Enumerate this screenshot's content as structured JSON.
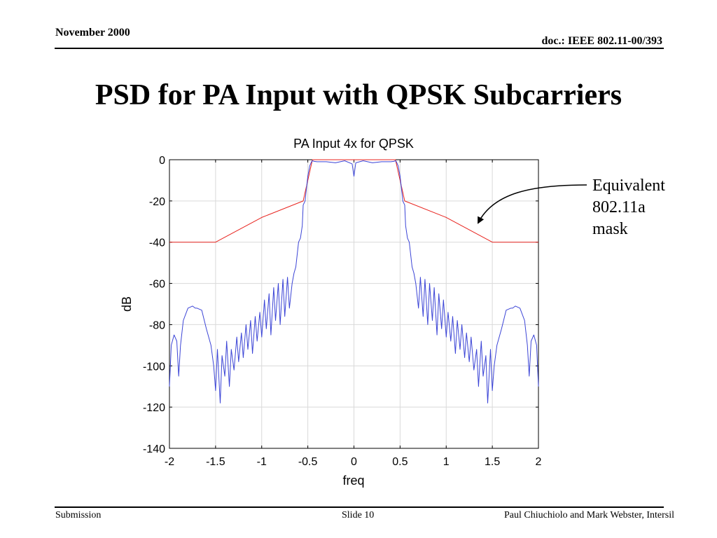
{
  "header": {
    "date": "November 2000",
    "doc": "doc.: IEEE 802.11-00/393"
  },
  "slide": {
    "title": "PSD for PA Input with QPSK Subcarriers"
  },
  "annotation": {
    "lines": [
      "Equivalent",
      "802.11a",
      "mask"
    ]
  },
  "footer": {
    "left": "Submission",
    "center": "Slide 10",
    "right": "Paul Chiuchiolo and Mark Webster, Intersil"
  },
  "colors": {
    "psd": "#3b44d6",
    "mask": "#e8231e",
    "grid": "#d9d9d9"
  },
  "chart_data": {
    "type": "line",
    "title": "PA Input 4x for QPSK",
    "xlabel": "freq",
    "ylabel": "dB",
    "xlim": [
      -2,
      2
    ],
    "ylim": [
      -140,
      0
    ],
    "x_ticks": [
      -2,
      -1.5,
      -1,
      -0.5,
      0,
      0.5,
      1,
      1.5,
      2
    ],
    "x_tick_labels": [
      "-2",
      "-1.5",
      "-1",
      "-0.5",
      "0",
      "0.5",
      "1",
      "1.5",
      "2"
    ],
    "y_ticks": [
      0,
      -20,
      -40,
      -60,
      -80,
      -100,
      -120,
      -140
    ],
    "y_tick_labels": [
      "0",
      "-20",
      "-40",
      "-60",
      "-80",
      "-100",
      "-120",
      "-140"
    ],
    "grid": true,
    "series": [
      {
        "color": "#e8231e",
        "x": [
          -2,
          -1.5,
          -1.0,
          -0.55,
          -0.5,
          -0.45,
          0.45,
          0.5,
          0.55,
          1.0,
          1.5,
          2
        ],
        "y": [
          -40,
          -40,
          -28,
          -20,
          -10,
          0,
          0,
          -10,
          -20,
          -28,
          -40,
          -40
        ]
      },
      {
        "color": "#3b44d6",
        "x": [
          -2,
          -1.98,
          -1.95,
          -1.92,
          -1.9,
          -1.88,
          -1.85,
          -1.8,
          -1.75,
          -1.72,
          -1.7,
          -1.65,
          -1.6,
          -1.55,
          -1.52,
          -1.5,
          -1.48,
          -1.45,
          -1.43,
          -1.4,
          -1.38,
          -1.35,
          -1.33,
          -1.3,
          -1.27,
          -1.25,
          -1.22,
          -1.2,
          -1.17,
          -1.15,
          -1.12,
          -1.1,
          -1.07,
          -1.05,
          -1.02,
          -1.0,
          -0.97,
          -0.95,
          -0.92,
          -0.9,
          -0.87,
          -0.85,
          -0.82,
          -0.8,
          -0.77,
          -0.75,
          -0.72,
          -0.7,
          -0.67,
          -0.65,
          -0.63,
          -0.6,
          -0.58,
          -0.56,
          -0.55,
          -0.53,
          -0.51,
          -0.5,
          -0.48,
          -0.46,
          -0.45,
          -0.43,
          -0.4,
          -0.3,
          -0.2,
          -0.1,
          -0.02,
          0,
          0.02,
          0.1,
          0.2,
          0.3,
          0.4,
          0.43,
          0.45,
          0.46,
          0.48,
          0.5,
          0.51,
          0.53,
          0.55,
          0.56,
          0.58,
          0.6,
          0.63,
          0.65,
          0.67,
          0.7,
          0.72,
          0.75,
          0.77,
          0.8,
          0.82,
          0.85,
          0.87,
          0.9,
          0.92,
          0.95,
          0.97,
          1.0,
          1.02,
          1.05,
          1.07,
          1.1,
          1.12,
          1.15,
          1.17,
          1.2,
          1.22,
          1.25,
          1.27,
          1.3,
          1.33,
          1.35,
          1.38,
          1.4,
          1.43,
          1.45,
          1.48,
          1.5,
          1.52,
          1.55,
          1.6,
          1.65,
          1.7,
          1.72,
          1.75,
          1.8,
          1.85,
          1.88,
          1.9,
          1.92,
          1.95,
          1.98,
          2
        ],
        "y": [
          -110,
          -90,
          -85,
          -88,
          -105,
          -90,
          -78,
          -72,
          -71,
          -72,
          -72,
          -73,
          -82,
          -90,
          -100,
          -112,
          -92,
          -118,
          -95,
          -105,
          -88,
          -110,
          -92,
          -102,
          -86,
          -98,
          -84,
          -96,
          -80,
          -92,
          -78,
          -94,
          -76,
          -88,
          -74,
          -86,
          -68,
          -82,
          -65,
          -85,
          -62,
          -78,
          -60,
          -80,
          -58,
          -76,
          -57,
          -72,
          -60,
          -55,
          -52,
          -40,
          -38,
          -32,
          -22,
          -20,
          -12,
          -8,
          -3,
          -1,
          -0.5,
          -0.8,
          -1,
          -1,
          -1.5,
          -0.5,
          -2,
          -8,
          -1.5,
          -0.5,
          -1.5,
          -1,
          -1,
          -0.8,
          -0.5,
          -1,
          -3,
          -8,
          -12,
          -20,
          -22,
          -32,
          -38,
          -40,
          -52,
          -55,
          -60,
          -72,
          -57,
          -76,
          -58,
          -80,
          -60,
          -78,
          -62,
          -85,
          -65,
          -82,
          -68,
          -86,
          -74,
          -88,
          -76,
          -94,
          -78,
          -92,
          -80,
          -96,
          -84,
          -98,
          -86,
          -102,
          -92,
          -110,
          -88,
          -105,
          -95,
          -118,
          -92,
          -112,
          -100,
          -90,
          -82,
          -73,
          -72,
          -72,
          -71,
          -72,
          -78,
          -90,
          -105,
          -88,
          -85,
          -90,
          -110
        ]
      }
    ]
  }
}
